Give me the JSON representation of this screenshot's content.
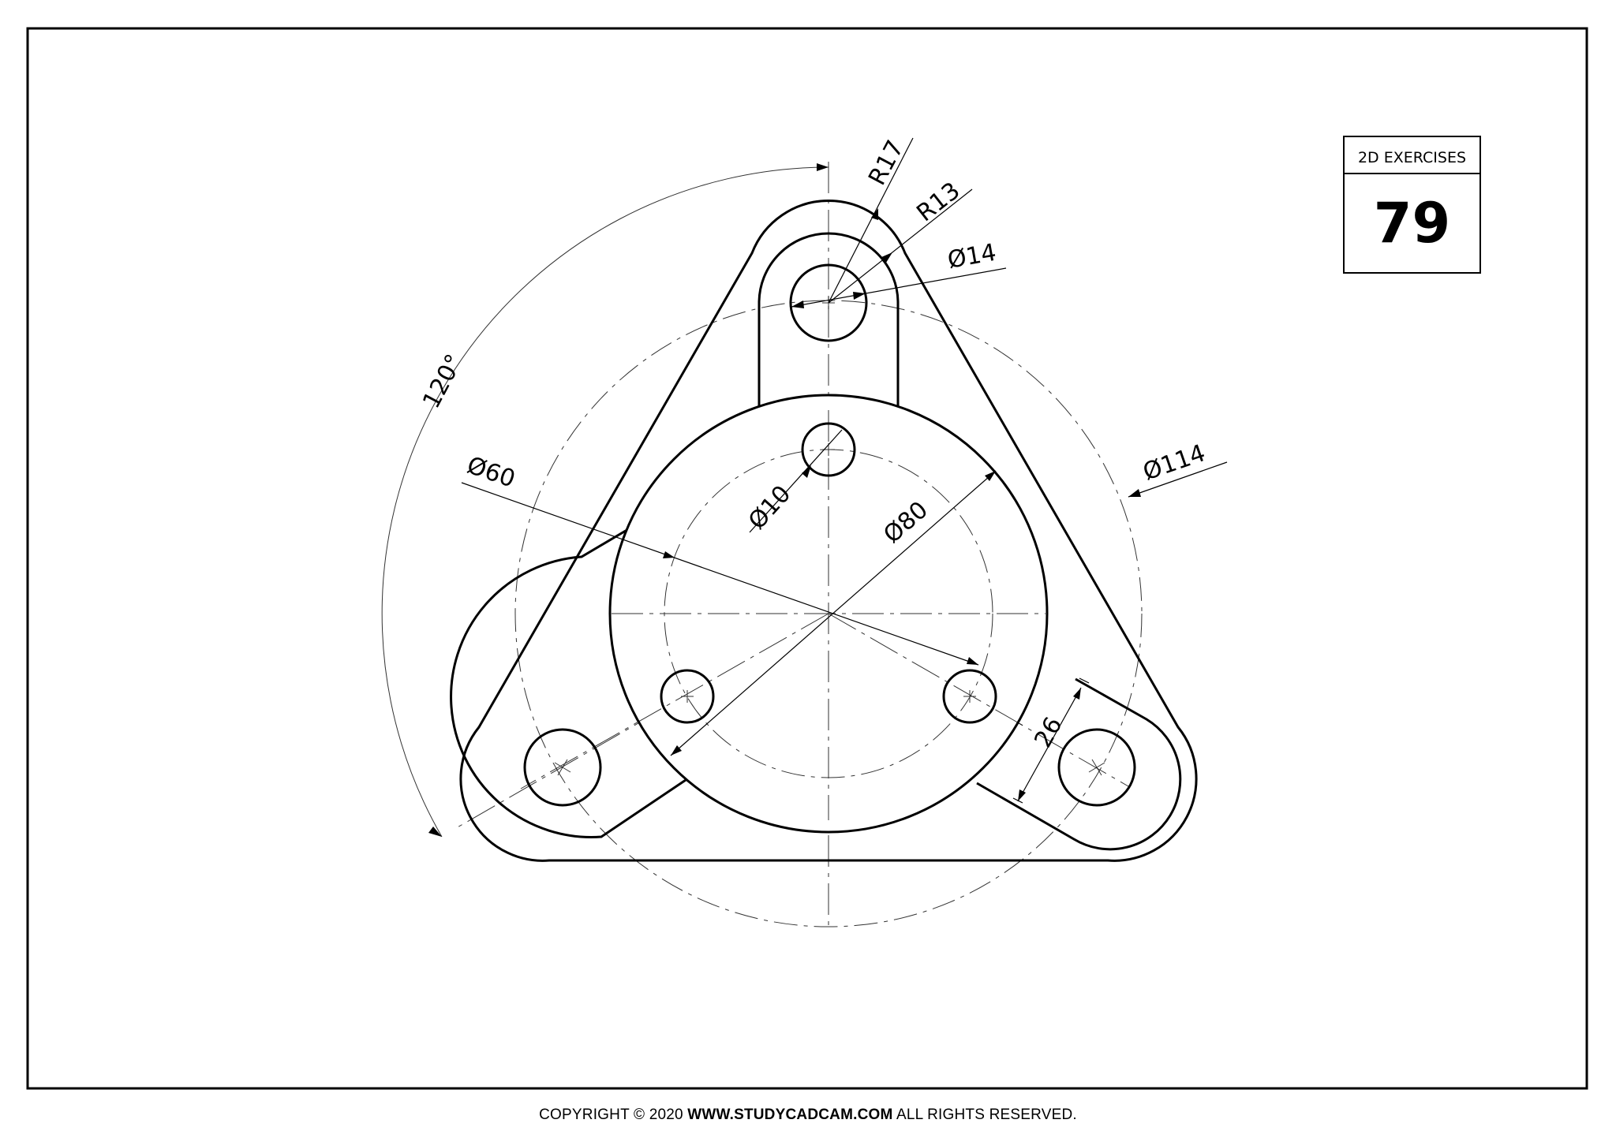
{
  "title_block": {
    "heading": "2D EXERCISES",
    "number": "79"
  },
  "dimensions": {
    "r_outer": "R17",
    "r_inner": "R13",
    "dia_hole_top": "Ø14",
    "angle": "120°",
    "dia_60": "Ø60",
    "dia_10": "Ø10",
    "dia_80": "Ø80",
    "dia_114": "Ø114",
    "width_26": "26"
  },
  "footer": {
    "prefix": "COPYRIGHT © 2020 ",
    "site": "WWW.STUDYCADCAM.COM",
    "suffix": " ALL RIGHTS RESERVED."
  }
}
